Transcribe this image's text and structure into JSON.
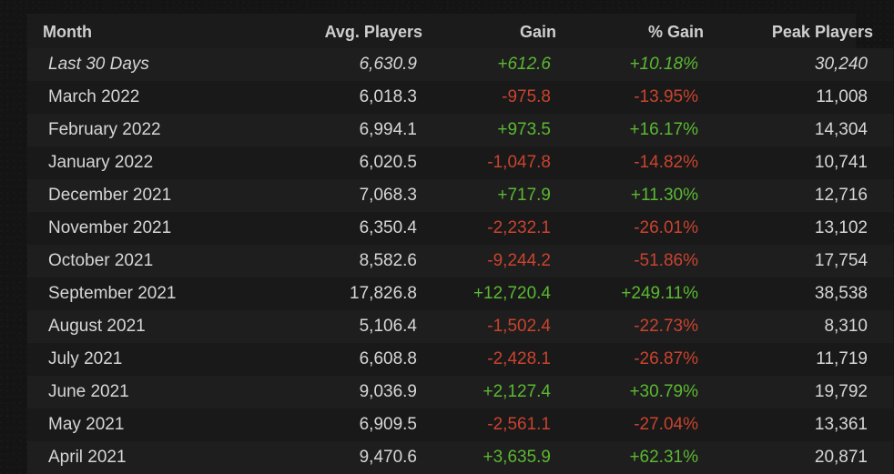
{
  "headers": {
    "month": "Month",
    "avg": "Avg. Players",
    "gain": "Gain",
    "pct": "% Gain",
    "peak": "Peak Players"
  },
  "colors": {
    "positive": "#5bb832",
    "negative": "#c9432e",
    "text": "#d6d6d6"
  },
  "rows": [
    {
      "month": "Last 30 Days",
      "avg": "6,630.9",
      "gain": "+612.6",
      "pct": "+10.18%",
      "peak": "30,240"
    },
    {
      "month": "March 2022",
      "avg": "6,018.3",
      "gain": "-975.8",
      "pct": "-13.95%",
      "peak": "11,008"
    },
    {
      "month": "February 2022",
      "avg": "6,994.1",
      "gain": "+973.5",
      "pct": "+16.17%",
      "peak": "14,304"
    },
    {
      "month": "January 2022",
      "avg": "6,020.5",
      "gain": "-1,047.8",
      "pct": "-14.82%",
      "peak": "10,741"
    },
    {
      "month": "December 2021",
      "avg": "7,068.3",
      "gain": "+717.9",
      "pct": "+11.30%",
      "peak": "12,716"
    },
    {
      "month": "November 2021",
      "avg": "6,350.4",
      "gain": "-2,232.1",
      "pct": "-26.01%",
      "peak": "13,102"
    },
    {
      "month": "October 2021",
      "avg": "8,582.6",
      "gain": "-9,244.2",
      "pct": "-51.86%",
      "peak": "17,754"
    },
    {
      "month": "September 2021",
      "avg": "17,826.8",
      "gain": "+12,720.4",
      "pct": "+249.11%",
      "peak": "38,538"
    },
    {
      "month": "August 2021",
      "avg": "5,106.4",
      "gain": "-1,502.4",
      "pct": "-22.73%",
      "peak": "8,310"
    },
    {
      "month": "July 2021",
      "avg": "6,608.8",
      "gain": "-2,428.1",
      "pct": "-26.87%",
      "peak": "11,719"
    },
    {
      "month": "June 2021",
      "avg": "9,036.9",
      "gain": "+2,127.4",
      "pct": "+30.79%",
      "peak": "19,792"
    },
    {
      "month": "May 2021",
      "avg": "6,909.5",
      "gain": "-2,561.1",
      "pct": "-27.04%",
      "peak": "13,361"
    },
    {
      "month": "April 2021",
      "avg": "9,470.6",
      "gain": "+3,635.9",
      "pct": "+62.31%",
      "peak": "20,871"
    }
  ]
}
